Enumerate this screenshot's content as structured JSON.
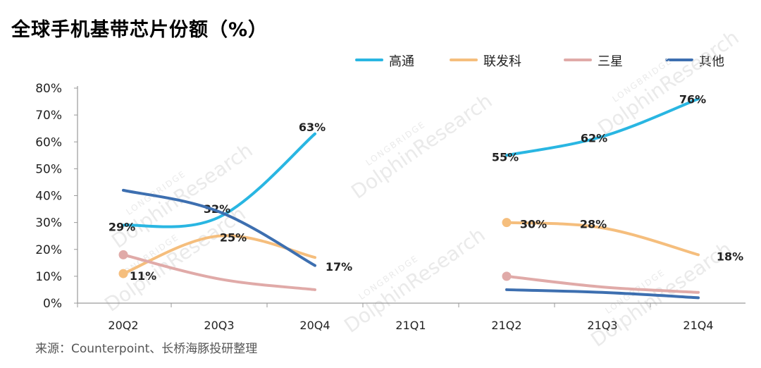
{
  "title": "全球手机基带芯片份额（%）",
  "source": "来源：Counterpoint、长桥海豚投研整理",
  "watermark": {
    "brand": "LONGBRIDGE",
    "name": "DolphinResearch"
  },
  "colors": {
    "axis": "#9a9a9a",
    "tick_text": "#222222",
    "watermark": "#e8e8e8"
  },
  "chart_data": {
    "type": "line",
    "title": "全球手机基带芯片份额（%）",
    "categories": [
      "20Q2",
      "20Q3",
      "20Q4",
      "21Q1",
      "21Q2",
      "21Q3",
      "21Q4"
    ],
    "ylim": [
      0,
      80
    ],
    "yticks": [
      "0%",
      "10%",
      "20%",
      "30%",
      "40%",
      "50%",
      "60%",
      "70%",
      "80%"
    ],
    "grid": false,
    "legend_position": "top-right",
    "series": [
      {
        "name": "高通",
        "color": "#29b6e2",
        "values": [
          29,
          32,
          63,
          null,
          55,
          62,
          76
        ],
        "labels": [
          "29%",
          "32%",
          "63%",
          "",
          "55%",
          "62%",
          "76%"
        ],
        "marker_index": null
      },
      {
        "name": "联发科",
        "color": "#f5be7d",
        "values": [
          11,
          25,
          17,
          null,
          30,
          28,
          18
        ],
        "labels": [
          "11%",
          "25%",
          "17%",
          "",
          "30%",
          "28%",
          "18%"
        ],
        "marker_index": [
          0,
          4
        ]
      },
      {
        "name": "三星",
        "color": "#e0aaa8",
        "values": [
          18,
          9,
          5,
          null,
          10,
          6,
          4
        ],
        "labels": [
          "",
          "",
          "",
          "",
          "",
          "",
          ""
        ],
        "marker_index": [
          0,
          4
        ]
      },
      {
        "name": "其他",
        "color": "#3d6fb0",
        "values": [
          42,
          34,
          14,
          null,
          5,
          4,
          2
        ],
        "labels": [
          "",
          "",
          "",
          "",
          "",
          "",
          ""
        ],
        "marker_index": null
      }
    ]
  }
}
